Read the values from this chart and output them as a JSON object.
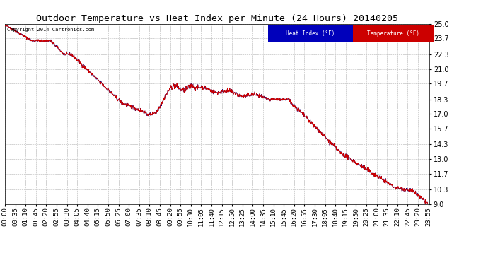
{
  "title": "Outdoor Temperature vs Heat Index per Minute (24 Hours) 20140205",
  "copyright": "Copyright 2014 Cartronics.com",
  "legend_heat_index": "Heat Index (°F)",
  "legend_temperature": "Temperature (°F)",
  "ylim": [
    9.0,
    25.0
  ],
  "yticks": [
    9.0,
    10.3,
    11.7,
    13.0,
    14.3,
    15.7,
    17.0,
    18.3,
    19.7,
    21.0,
    22.3,
    23.7,
    25.0
  ],
  "background_color": "#ffffff",
  "plot_background": "#ffffff",
  "grid_color": "#b0b0b0",
  "line_color": "#cc0000",
  "heat_index_legend_bg": "#0000bb",
  "temp_legend_bg": "#cc0000",
  "title_fontsize": 9.5,
  "tick_label_fontsize": 6.5,
  "ytick_fontsize": 7
}
